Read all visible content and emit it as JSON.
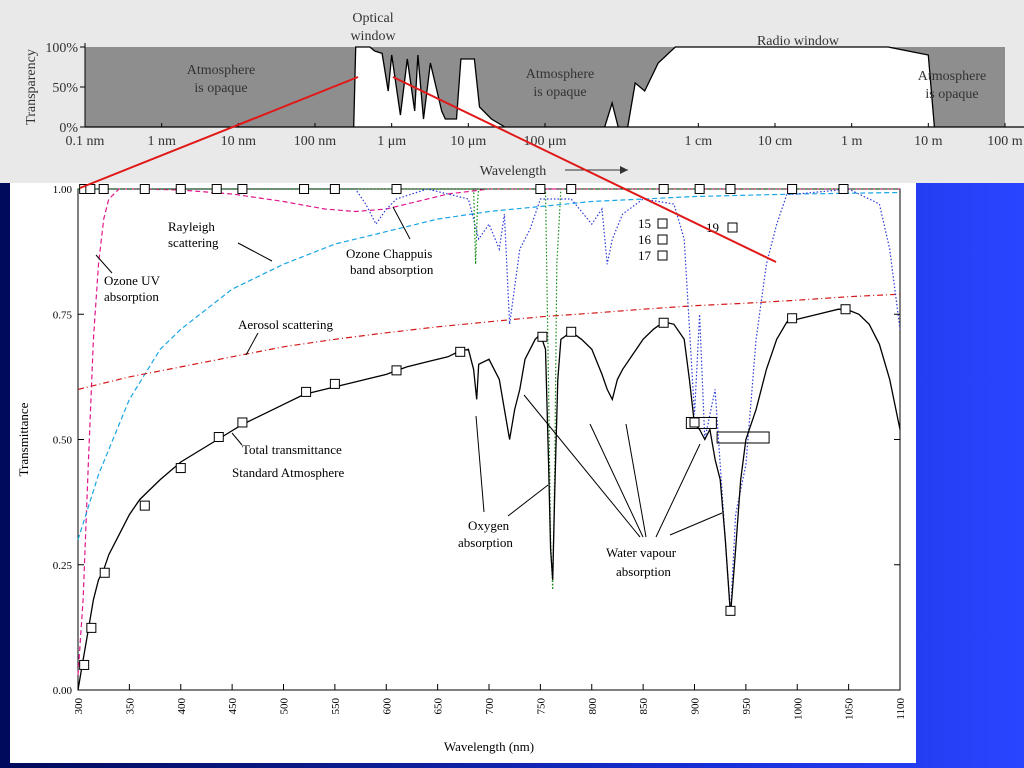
{
  "colors": {
    "background_left": "#000a5c",
    "background_right": "#2a45ff",
    "top_panel": "#e9e9e9",
    "opaque_fill": "#8e8e8e",
    "connector_line": "#e01818",
    "ozone_uv": "#e0188c",
    "rayleigh": "#19a6e6",
    "aerosol": "#d41818",
    "ozone_chappuis": "#2b3ad8",
    "oxygen": "#138a13",
    "total": "#000000"
  },
  "chart_data": [
    {
      "type": "area",
      "description_panel": "atmospheric_window",
      "title_optical": [
        "Optical",
        "window"
      ],
      "title_radio": "Radio window",
      "ylabel": "Transparency",
      "xlabel": "Wavelength",
      "xlabel_arrow": "→",
      "y_ticks": [
        "100%",
        "50%",
        "0%"
      ],
      "x_ticks": [
        "0.1 nm",
        "1 nm",
        "10 nm",
        "100 nm",
        "1 μm",
        "10 μm",
        "100 μm",
        "1 cm",
        "10 cm",
        "1 m",
        "10 m",
        "100 m"
      ],
      "region_labels": [
        [
          "Atmosphere",
          "is opaque"
        ],
        [
          "Atmosphere",
          "is opaque"
        ],
        [
          "Atmosphere",
          "is opaque"
        ]
      ],
      "x_scale": "log",
      "x_unit": "m",
      "transparency_profile": [
        [
          1e-10,
          0
        ],
        [
          3.2e-07,
          0
        ],
        [
          3.4e-07,
          1.0
        ],
        [
          5.2e-07,
          1.0
        ],
        [
          6e-07,
          0.95
        ],
        [
          7.5e-07,
          0.92
        ],
        [
          9e-07,
          0.45
        ],
        [
          1e-06,
          0.9
        ],
        [
          1.3e-06,
          0.15
        ],
        [
          1.6e-06,
          0.85
        ],
        [
          2e-06,
          0.2
        ],
        [
          2.2e-06,
          0.9
        ],
        [
          2.6e-06,
          0.1
        ],
        [
          3.2e-06,
          0.8
        ],
        [
          4.5e-06,
          0.2
        ],
        [
          5e-06,
          0.1
        ],
        [
          7e-06,
          0.1
        ],
        [
          8e-06,
          0.85
        ],
        [
          1.2e-05,
          0.85
        ],
        [
          1.4e-05,
          0.25
        ],
        [
          2e-05,
          0.1
        ],
        [
          3e-05,
          0.0
        ],
        [
          0.0006,
          0.0
        ],
        [
          0.00075,
          0.3
        ],
        [
          0.0009,
          0.0
        ],
        [
          0.0012,
          0.0
        ],
        [
          0.0015,
          0.55
        ],
        [
          0.002,
          0.45
        ],
        [
          0.003,
          0.8
        ],
        [
          0.005,
          1.0
        ],
        [
          3.0,
          1.0
        ],
        [
          10.0,
          0.9
        ],
        [
          12.0,
          0.0
        ],
        [
          1000,
          0
        ]
      ]
    },
    {
      "type": "line",
      "description_panel": "transmittance",
      "xlabel": "Wavelength (nm)",
      "ylabel": "Transmittance",
      "xlim": [
        300,
        1100
      ],
      "ylim": [
        0,
        1
      ],
      "x_ticks": [
        300,
        350,
        400,
        450,
        500,
        550,
        600,
        650,
        700,
        750,
        800,
        850,
        900,
        950,
        1000,
        1050,
        1100
      ],
      "y_ticks": [
        "0.00",
        "0.25",
        "0.50",
        "0.75",
        "1.00"
      ],
      "annotations": {
        "ozone_uv": [
          "Ozone UV",
          "absorption"
        ],
        "rayleigh": [
          "Rayleigh",
          "scattering"
        ],
        "chappuis": [
          "Ozone Chappuis",
          "band absorption"
        ],
        "aerosol": "Aerosol scattering",
        "total": [
          "Total transmittance",
          "Standard Atmosphere"
        ],
        "oxygen": [
          "Oxygen",
          "absorption"
        ],
        "water": [
          "Water vapour",
          "absorption"
        ],
        "marker_labels": [
          "15",
          "16",
          "17",
          "19"
        ]
      },
      "series": [
        {
          "key": "ozone_uv",
          "style": "dashed",
          "points": [
            [
              300,
              0.03
            ],
            [
              305,
              0.18
            ],
            [
              310,
              0.45
            ],
            [
              315,
              0.7
            ],
            [
              320,
              0.85
            ],
            [
              325,
              0.94
            ],
            [
              330,
              0.98
            ],
            [
              340,
              1.0
            ],
            [
              360,
              1.0
            ],
            [
              400,
              0.998
            ],
            [
              450,
              0.99
            ],
            [
              500,
              0.975
            ],
            [
              540,
              0.96
            ],
            [
              570,
              0.955
            ],
            [
              600,
              0.96
            ],
            [
              630,
              0.975
            ],
            [
              660,
              0.99
            ],
            [
              700,
              1.0
            ],
            [
              1100,
              1.0
            ]
          ]
        },
        {
          "key": "rayleigh",
          "style": "dashed",
          "points": [
            [
              300,
              0.3
            ],
            [
              320,
              0.43
            ],
            [
              350,
              0.58
            ],
            [
              380,
              0.68
            ],
            [
              400,
              0.72
            ],
            [
              450,
              0.8
            ],
            [
              500,
              0.85
            ],
            [
              550,
              0.89
            ],
            [
              600,
              0.915
            ],
            [
              650,
              0.94
            ],
            [
              700,
              0.955
            ],
            [
              750,
              0.965
            ],
            [
              800,
              0.975
            ],
            [
              850,
              0.98
            ],
            [
              900,
              0.985
            ],
            [
              1000,
              0.99
            ],
            [
              1100,
              0.993
            ]
          ]
        },
        {
          "key": "aerosol",
          "style": "dashdot",
          "points": [
            [
              300,
              0.6
            ],
            [
              350,
              0.625
            ],
            [
              400,
              0.645
            ],
            [
              450,
              0.665
            ],
            [
              500,
              0.685
            ],
            [
              550,
              0.7
            ],
            [
              600,
              0.713
            ],
            [
              650,
              0.725
            ],
            [
              700,
              0.735
            ],
            [
              750,
              0.745
            ],
            [
              800,
              0.752
            ],
            [
              850,
              0.76
            ],
            [
              900,
              0.767
            ],
            [
              950,
              0.772
            ],
            [
              1000,
              0.778
            ],
            [
              1050,
              0.785
            ],
            [
              1100,
              0.79
            ]
          ]
        },
        {
          "key": "ozone_chappuis",
          "style": "dotted",
          "points": [
            [
              300,
              1.0
            ],
            [
              570,
              1.0
            ],
            [
              580,
              0.97
            ],
            [
              590,
              0.93
            ],
            [
              600,
              0.96
            ],
            [
              610,
              0.98
            ],
            [
              640,
              1.0
            ],
            [
              680,
              0.98
            ],
            [
              690,
              0.9
            ],
            [
              700,
              0.93
            ],
            [
              710,
              0.88
            ],
            [
              715,
              0.95
            ],
            [
              720,
              0.73
            ],
            [
              730,
              0.88
            ],
            [
              740,
              0.92
            ],
            [
              750,
              0.98
            ],
            [
              780,
              0.98
            ],
            [
              800,
              0.93
            ],
            [
              810,
              0.96
            ],
            [
              815,
              0.85
            ],
            [
              820,
              0.9
            ],
            [
              830,
              0.95
            ],
            [
              850,
              0.98
            ],
            [
              880,
              0.97
            ],
            [
              890,
              0.9
            ],
            [
              900,
              0.55
            ],
            [
              905,
              0.75
            ],
            [
              910,
              0.5
            ],
            [
              920,
              0.6
            ],
            [
              930,
              0.3
            ],
            [
              935,
              0.15
            ],
            [
              940,
              0.35
            ],
            [
              950,
              0.45
            ],
            [
              960,
              0.7
            ],
            [
              970,
              0.85
            ],
            [
              980,
              0.93
            ],
            [
              990,
              0.99
            ],
            [
              1000,
              0.99
            ],
            [
              1050,
              1.0
            ],
            [
              1080,
              0.97
            ],
            [
              1090,
              0.88
            ],
            [
              1100,
              0.72
            ]
          ]
        },
        {
          "key": "oxygen",
          "style": "dotted",
          "points": [
            [
              300,
              1.0
            ],
            [
              685,
              1.0
            ],
            [
              687,
              0.85
            ],
            [
              689,
              0.98
            ],
            [
              690,
              1.0
            ],
            [
              755,
              1.0
            ],
            [
              758,
              0.6
            ],
            [
              760,
              0.3
            ],
            [
              762,
              0.2
            ],
            [
              764,
              0.45
            ],
            [
              766,
              0.85
            ],
            [
              770,
              1.0
            ],
            [
              1100,
              1.0
            ]
          ]
        },
        {
          "key": "total",
          "style": "solid",
          "points": [
            [
              300,
              0.0
            ],
            [
              305,
              0.06
            ],
            [
              310,
              0.12
            ],
            [
              315,
              0.18
            ],
            [
              320,
              0.22
            ],
            [
              325,
              0.24
            ],
            [
              330,
              0.27
            ],
            [
              340,
              0.31
            ],
            [
              350,
              0.35
            ],
            [
              360,
              0.38
            ],
            [
              370,
              0.4
            ],
            [
              380,
              0.42
            ],
            [
              400,
              0.455
            ],
            [
              420,
              0.48
            ],
            [
              440,
              0.505
            ],
            [
              460,
              0.53
            ],
            [
              480,
              0.55
            ],
            [
              500,
              0.57
            ],
            [
              520,
              0.59
            ],
            [
              540,
              0.6
            ],
            [
              560,
              0.61
            ],
            [
              580,
              0.62
            ],
            [
              600,
              0.63
            ],
            [
              620,
              0.645
            ],
            [
              640,
              0.655
            ],
            [
              660,
              0.665
            ],
            [
              670,
              0.675
            ],
            [
              680,
              0.68
            ],
            [
              685,
              0.64
            ],
            [
              688,
              0.58
            ],
            [
              690,
              0.65
            ],
            [
              700,
              0.66
            ],
            [
              710,
              0.62
            ],
            [
              715,
              0.56
            ],
            [
              720,
              0.5
            ],
            [
              725,
              0.56
            ],
            [
              730,
              0.6
            ],
            [
              735,
              0.66
            ],
            [
              745,
              0.7
            ],
            [
              750,
              0.71
            ],
            [
              755,
              0.68
            ],
            [
              758,
              0.45
            ],
            [
              760,
              0.28
            ],
            [
              762,
              0.22
            ],
            [
              764,
              0.4
            ],
            [
              767,
              0.62
            ],
            [
              770,
              0.7
            ],
            [
              780,
              0.715
            ],
            [
              790,
              0.7
            ],
            [
              800,
              0.68
            ],
            [
              810,
              0.63
            ],
            [
              815,
              0.6
            ],
            [
              820,
              0.58
            ],
            [
              825,
              0.62
            ],
            [
              830,
              0.64
            ],
            [
              840,
              0.67
            ],
            [
              850,
              0.7
            ],
            [
              860,
              0.72
            ],
            [
              870,
              0.735
            ],
            [
              880,
              0.73
            ],
            [
              890,
              0.7
            ],
            [
              895,
              0.62
            ],
            [
              900,
              0.53
            ],
            [
              905,
              0.52
            ],
            [
              910,
              0.5
            ],
            [
              915,
              0.52
            ],
            [
              920,
              0.46
            ],
            [
              925,
              0.42
            ],
            [
              930,
              0.3
            ],
            [
              935,
              0.15
            ],
            [
              940,
              0.28
            ],
            [
              945,
              0.42
            ],
            [
              950,
              0.5
            ],
            [
              960,
              0.56
            ],
            [
              970,
              0.64
            ],
            [
              980,
              0.7
            ],
            [
              990,
              0.735
            ],
            [
              1000,
              0.74
            ],
            [
              1010,
              0.745
            ],
            [
              1020,
              0.75
            ],
            [
              1040,
              0.76
            ],
            [
              1050,
              0.758
            ],
            [
              1060,
              0.75
            ],
            [
              1070,
              0.73
            ],
            [
              1080,
              0.69
            ],
            [
              1090,
              0.62
            ],
            [
              1100,
              0.52
            ]
          ]
        }
      ],
      "square_markers": [
        {
          "series": "ozone_uv",
          "x": [
            306,
            312,
            325,
            365,
            400,
            435,
            460,
            520,
            550,
            610,
            750,
            780,
            870,
            905,
            935,
            995,
            1045
          ]
        },
        {
          "series": "total",
          "x": [
            306,
            313,
            326,
            365,
            400,
            437,
            460,
            522,
            550,
            610,
            672,
            752,
            780,
            870,
            900,
            935,
            995,
            1047
          ]
        }
      ],
      "total_markers_y": {
        "306": 0.05,
        "313": 0.124,
        "326": 0.234,
        "365": 0.368,
        "400": 0.443,
        "437": 0.505,
        "460": 0.534,
        "522": 0.595,
        "550": 0.611,
        "610": 0.638,
        "672": 0.675,
        "752": 0.705,
        "780": 0.715,
        "870": 0.733,
        "900": 0.534,
        "935": 0.158,
        "995": 0.742,
        "1047": 0.76
      }
    }
  ]
}
